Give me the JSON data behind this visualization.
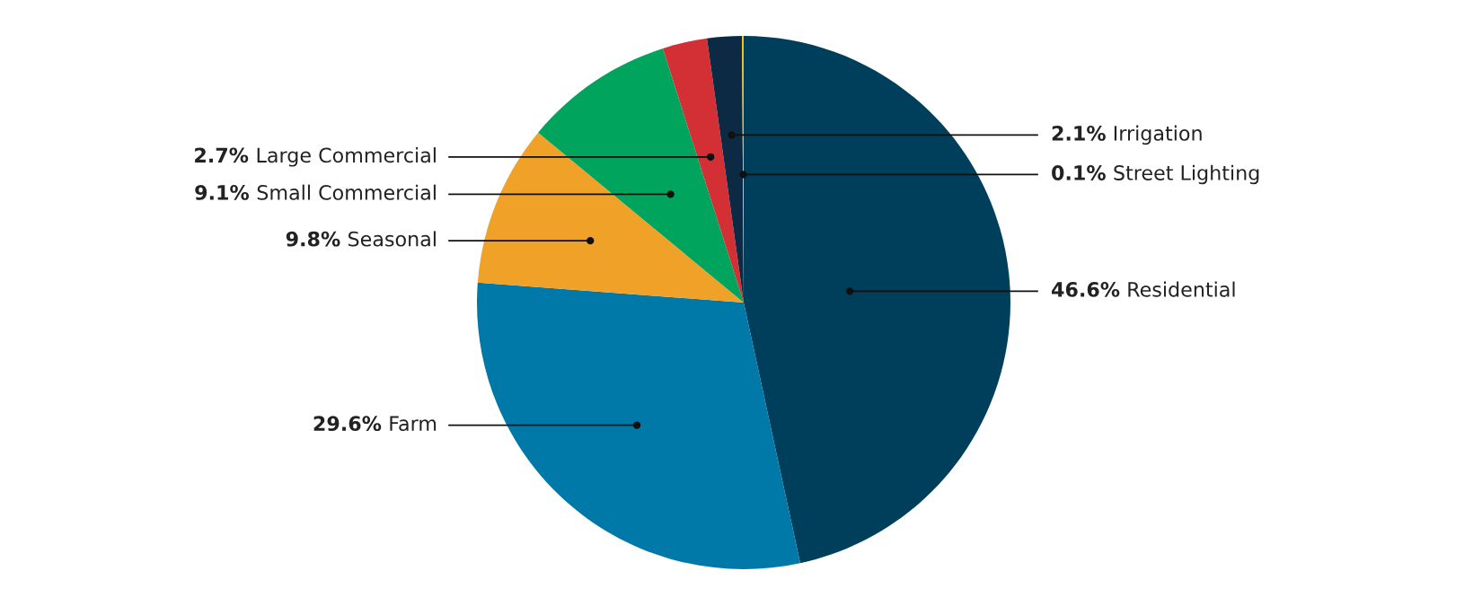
{
  "chart_data": {
    "type": "pie",
    "categories": [
      "Residential",
      "Farm",
      "Seasonal",
      "Small Commercial",
      "Large Commercial",
      "Irrigation",
      "Street Lighting"
    ],
    "values": [
      46.6,
      29.6,
      9.8,
      9.1,
      2.7,
      2.1,
      0.1
    ],
    "value_labels": [
      "46.6%",
      "29.6%",
      "9.8%",
      "9.1%",
      "2.7%",
      "2.1%",
      "0.1%"
    ],
    "colors": [
      "#003f5c",
      "#0079a8",
      "#f0a128",
      "#00a45c",
      "#d23035",
      "#0c2a44",
      "#f5c400"
    ]
  }
}
